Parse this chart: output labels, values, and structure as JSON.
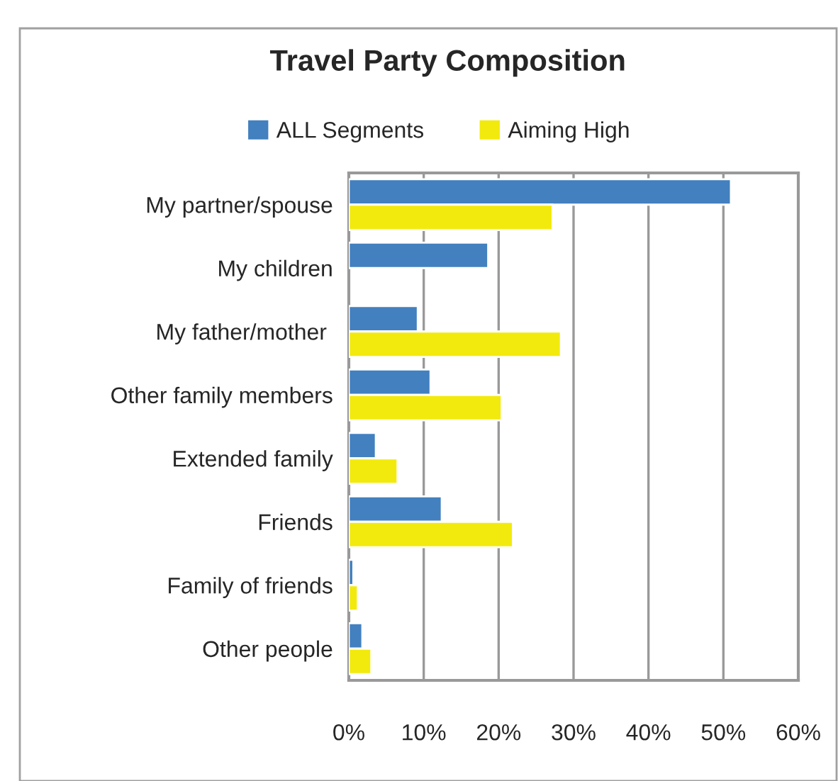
{
  "chart_data": {
    "type": "bar",
    "orientation": "horizontal",
    "title": "Travel Party Composition",
    "categories": [
      "My partner/spouse",
      "My children",
      "My father/mother ",
      "Other family members",
      "Extended family",
      "Friends",
      "Family of friends",
      "Other people"
    ],
    "series": [
      {
        "name": "ALL Segments",
        "color": "#4280bf",
        "values": [
          51.0,
          18.6,
          9.2,
          10.9,
          3.6,
          12.4,
          0.6,
          1.8
        ]
      },
      {
        "name": "Aiming High",
        "color": "#f2ea0c",
        "values": [
          27.2,
          null,
          28.3,
          20.4,
          6.5,
          21.9,
          1.2,
          3.0
        ]
      }
    ],
    "xlim": [
      0,
      60
    ],
    "xticks": [
      {
        "value": 0,
        "label": "0%"
      },
      {
        "value": 10,
        "label": "10%"
      },
      {
        "value": 20,
        "label": "20%"
      },
      {
        "value": 30,
        "label": "30%"
      },
      {
        "value": 40,
        "label": "40%"
      },
      {
        "value": 50,
        "label": "50%"
      },
      {
        "value": 60,
        "label": "60%"
      }
    ],
    "grid": "x",
    "legend": "top"
  }
}
